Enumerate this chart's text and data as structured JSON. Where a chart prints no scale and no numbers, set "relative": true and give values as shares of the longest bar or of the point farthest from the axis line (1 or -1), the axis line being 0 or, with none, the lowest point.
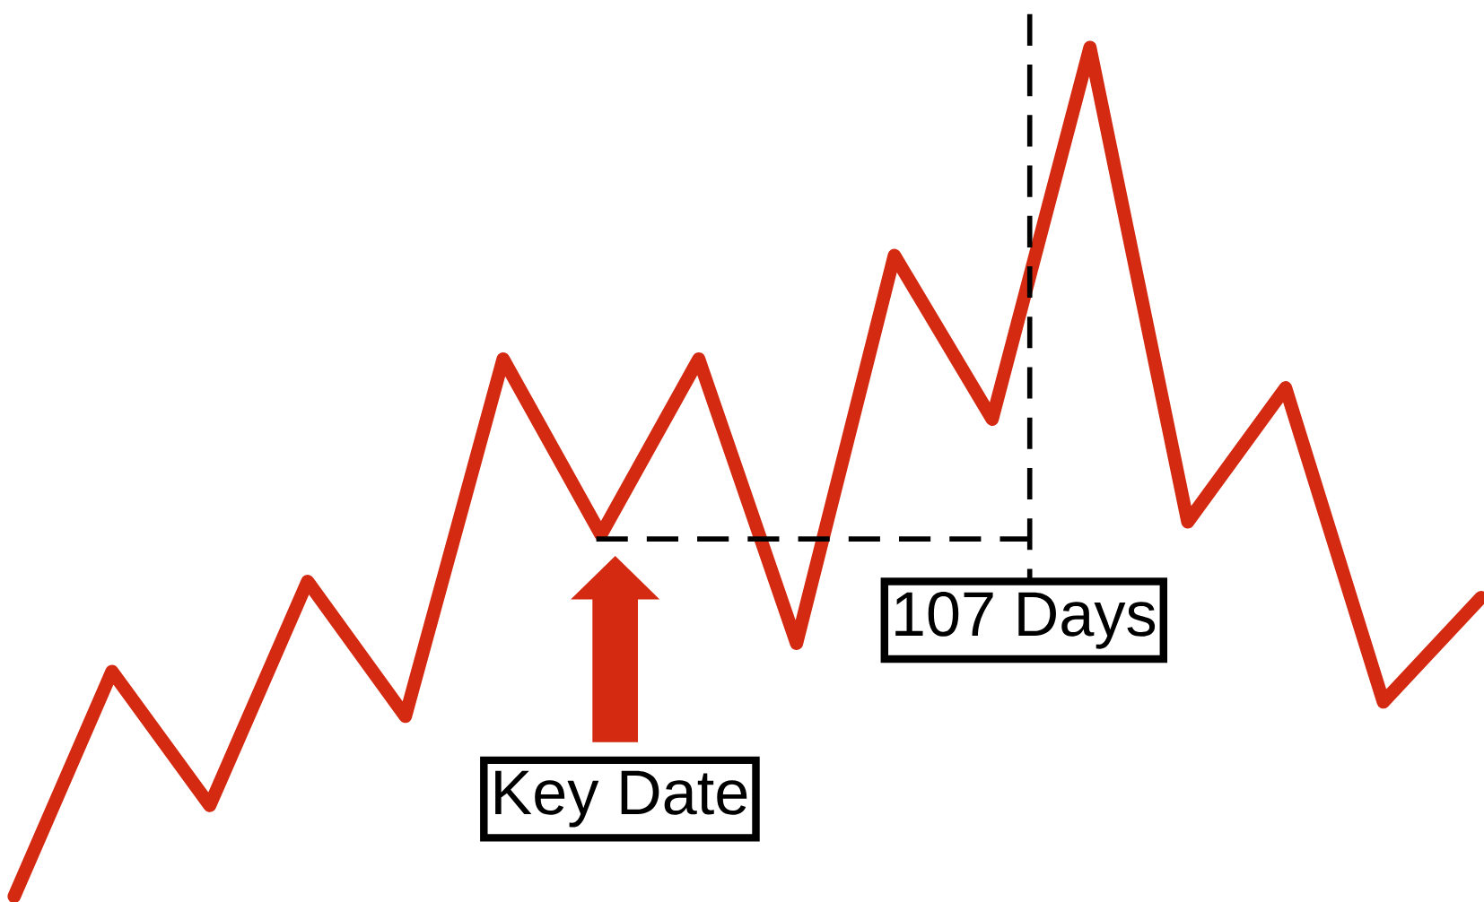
{
  "chart_data": {
    "type": "line",
    "relative": true,
    "color": "#d42a12",
    "categories": [
      null,
      null,
      null,
      null,
      null,
      null,
      null,
      null,
      null,
      null,
      null,
      null,
      null,
      null,
      null,
      null
    ],
    "values": [
      0,
      0.265,
      0.107,
      0.371,
      0.212,
      0.633,
      0.426,
      0.633,
      0.298,
      0.755,
      0.562,
      1,
      0.441,
      0.599,
      0.229,
      0.352
    ],
    "line_style": "solid",
    "marker": "none",
    "annotations": [
      "Key Date",
      "107 Days"
    ]
  }
}
